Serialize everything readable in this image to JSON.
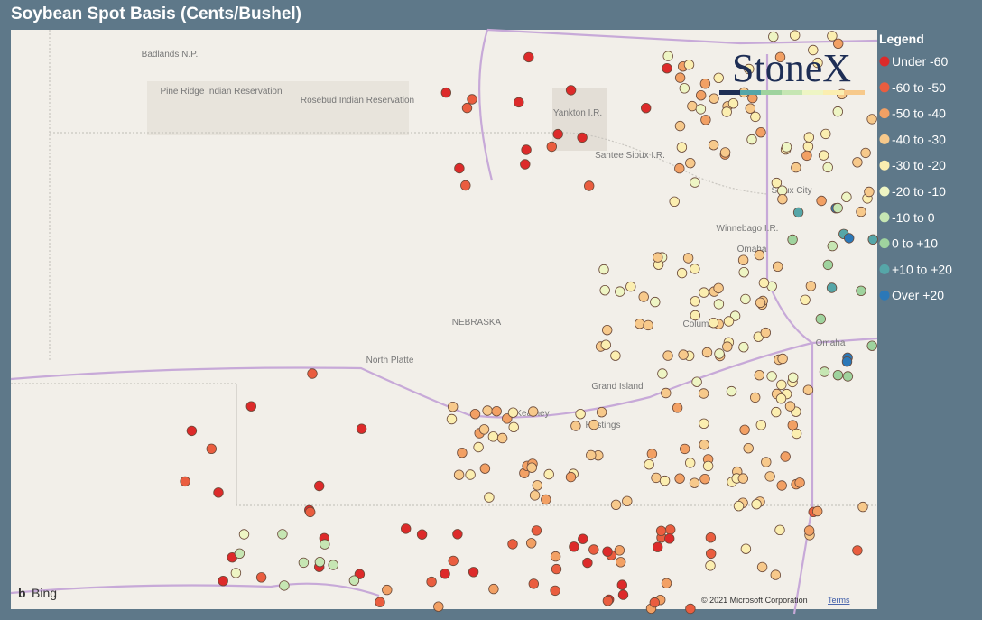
{
  "header": {
    "title": "Soybean Spot Basis (Cents/Bushel)"
  },
  "logo": "StoneX",
  "map": {
    "labels": [
      "Badlands N.P.",
      "Pine Ridge Indian Reservation",
      "Rosebud Indian Reservation",
      "Yankton I.R.",
      "Santee Sioux I.R.",
      "Sioux City",
      "Winnebago I.R.",
      "Omaha",
      "NEBRASKA",
      "Columbus",
      "Omaha",
      "North Platte",
      "Grand Island",
      "Kearney",
      "Hastings"
    ],
    "provider": "Bing",
    "copyright": "© 2021 Microsoft Corporation",
    "terms": "Terms"
  },
  "legend": {
    "title": "Legend",
    "items": [
      {
        "label": "Under -60",
        "color": "#dd2a2a"
      },
      {
        "label": "-60 to -50",
        "color": "#ea5d3f"
      },
      {
        "label": "-50 to -40",
        "color": "#f2a064"
      },
      {
        "label": "-40 to -30",
        "color": "#f7c98b"
      },
      {
        "label": "-30 to -20",
        "color": "#fbeeb0"
      },
      {
        "label": "-20 to -10",
        "color": "#eef5c4"
      },
      {
        "label": "-10 to 0",
        "color": "#c6e6b3"
      },
      {
        "label": "0 to +10",
        "color": "#9fd39e"
      },
      {
        "label": "+10 to +20",
        "color": "#56a6a8"
      },
      {
        "label": "Over +20",
        "color": "#2b78b8"
      }
    ]
  }
}
